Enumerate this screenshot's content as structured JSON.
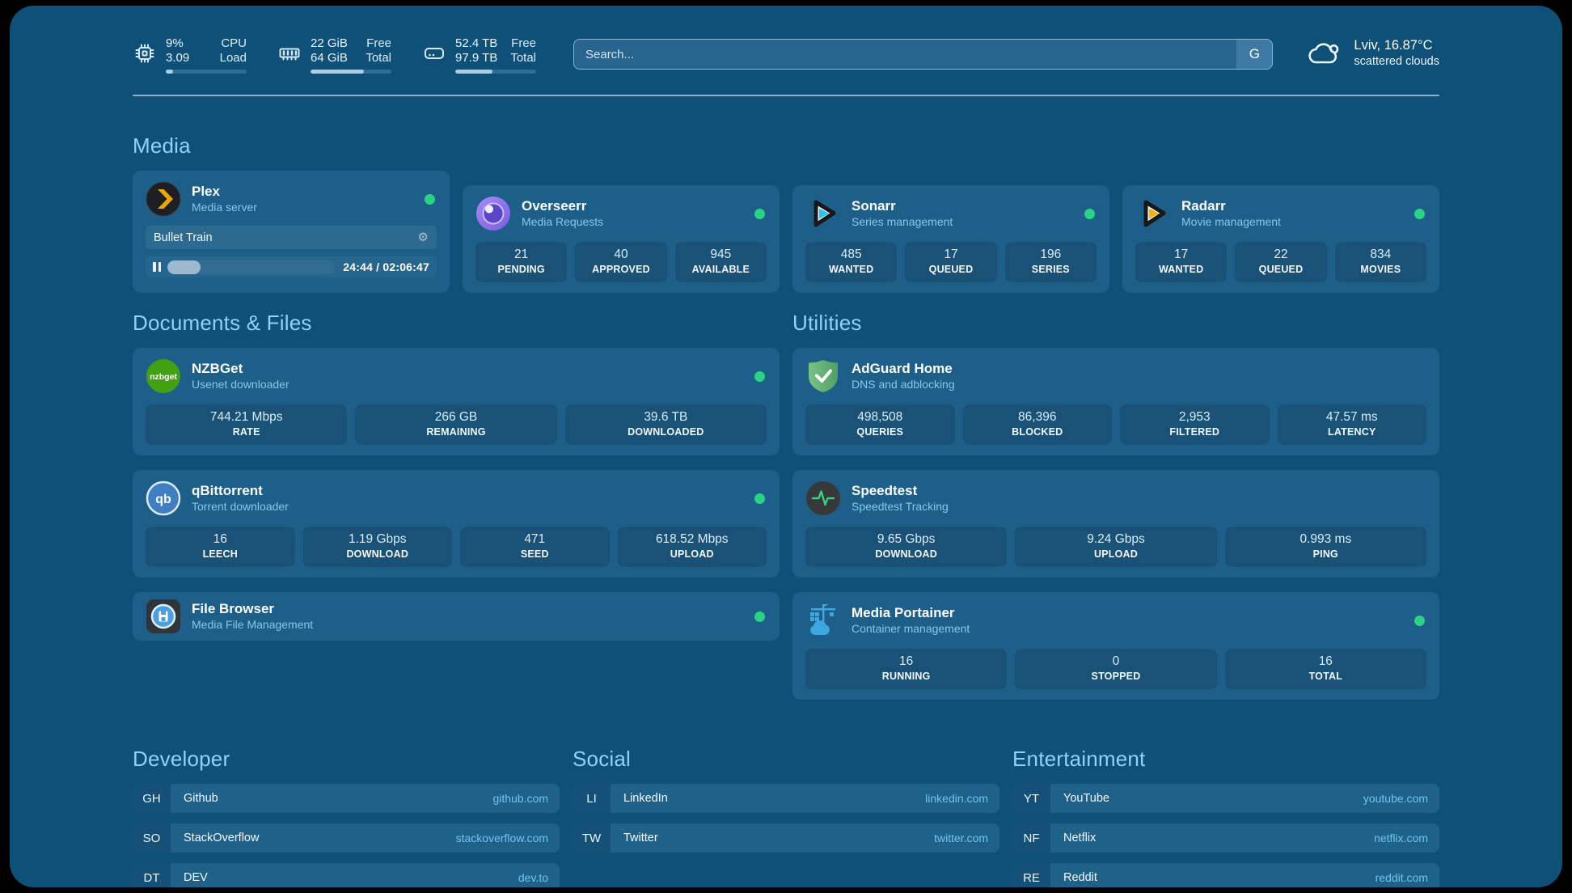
{
  "header": {
    "system_stats": [
      {
        "icon": "cpu-icon",
        "rows": [
          {
            "value": "9%",
            "label": "CPU"
          },
          {
            "value": "3.09",
            "label": "Load"
          }
        ],
        "progress_percent": 9
      },
      {
        "icon": "memory-icon",
        "rows": [
          {
            "value": "22 GiB",
            "label": "Free"
          },
          {
            "value": "64 GiB",
            "label": "Total"
          }
        ],
        "progress_percent": 66
      },
      {
        "icon": "disk-icon",
        "rows": [
          {
            "value": "52.4 TB",
            "label": "Free"
          },
          {
            "value": "97.9 TB",
            "label": "Total"
          }
        ],
        "progress_percent": 46
      }
    ],
    "search": {
      "placeholder": "Search...",
      "button_label": "G"
    },
    "weather": {
      "icon": "cloud-icon",
      "title": "Lviv, 16.87°C",
      "subtitle": "scattered clouds"
    }
  },
  "sections": {
    "media": {
      "title": "Media",
      "cards": [
        {
          "name": "Plex",
          "subtitle": "Media server",
          "online": true,
          "now_playing": {
            "title": "Bullet Train",
            "time_display": "24:44 / 02:06:47",
            "progress_percent": 20
          }
        },
        {
          "name": "Overseerr",
          "subtitle": "Media Requests",
          "online": true,
          "stats": [
            {
              "value": "21",
              "label": "PENDING"
            },
            {
              "value": "40",
              "label": "APPROVED"
            },
            {
              "value": "945",
              "label": "AVAILABLE"
            }
          ]
        },
        {
          "name": "Sonarr",
          "subtitle": "Series management",
          "online": true,
          "stats": [
            {
              "value": "485",
              "label": "WANTED"
            },
            {
              "value": "17",
              "label": "QUEUED"
            },
            {
              "value": "196",
              "label": "SERIES"
            }
          ]
        },
        {
          "name": "Radarr",
          "subtitle": "Movie management",
          "online": true,
          "stats": [
            {
              "value": "17",
              "label": "WANTED"
            },
            {
              "value": "22",
              "label": "QUEUED"
            },
            {
              "value": "834",
              "label": "MOVIES"
            }
          ]
        }
      ]
    },
    "documents": {
      "title": "Documents & Files",
      "cards": [
        {
          "name": "NZBGet",
          "subtitle": "Usenet downloader",
          "online": true,
          "stats": [
            {
              "value": "744.21 Mbps",
              "label": "RATE"
            },
            {
              "value": "266 GB",
              "label": "REMAINING"
            },
            {
              "value": "39.6 TB",
              "label": "DOWNLOADED"
            }
          ]
        },
        {
          "name": "qBittorrent",
          "subtitle": "Torrent downloader",
          "online": true,
          "stats": [
            {
              "value": "16",
              "label": "LEECH"
            },
            {
              "value": "1.19 Gbps",
              "label": "DOWNLOAD"
            },
            {
              "value": "471",
              "label": "SEED"
            },
            {
              "value": "618.52 Mbps",
              "label": "UPLOAD"
            }
          ]
        },
        {
          "name": "File Browser",
          "subtitle": "Media File Management",
          "online": true,
          "stats": []
        }
      ]
    },
    "utilities": {
      "title": "Utilities",
      "cards": [
        {
          "name": "AdGuard Home",
          "subtitle": "DNS and adblocking",
          "online": false,
          "stats": [
            {
              "value": "498,508",
              "label": "QUERIES"
            },
            {
              "value": "86,396",
              "label": "BLOCKED"
            },
            {
              "value": "2,953",
              "label": "FILTERED"
            },
            {
              "value": "47.57 ms",
              "label": "LATENCY"
            }
          ]
        },
        {
          "name": "Speedtest",
          "subtitle": "Speedtest Tracking",
          "online": false,
          "stats": [
            {
              "value": "9.65 Gbps",
              "label": "DOWNLOAD"
            },
            {
              "value": "9.24 Gbps",
              "label": "UPLOAD"
            },
            {
              "value": "0.993 ms",
              "label": "PING"
            }
          ]
        },
        {
          "name": "Media Portainer",
          "subtitle": "Container management",
          "online": true,
          "stats": [
            {
              "value": "16",
              "label": "RUNNING"
            },
            {
              "value": "0",
              "label": "STOPPED"
            },
            {
              "value": "16",
              "label": "TOTAL"
            }
          ]
        }
      ]
    },
    "links": [
      {
        "title": "Developer",
        "items": [
          {
            "tag": "GH",
            "label": "Github",
            "url": "github.com"
          },
          {
            "tag": "SO",
            "label": "StackOverflow",
            "url": "stackoverflow.com"
          },
          {
            "tag": "DT",
            "label": "DEV",
            "url": "dev.to"
          }
        ]
      },
      {
        "title": "Social",
        "items": [
          {
            "tag": "LI",
            "label": "LinkedIn",
            "url": "linkedin.com"
          },
          {
            "tag": "TW",
            "label": "Twitter",
            "url": "twitter.com"
          }
        ]
      },
      {
        "title": "Entertainment",
        "items": [
          {
            "tag": "YT",
            "label": "YouTube",
            "url": "youtube.com"
          },
          {
            "tag": "NF",
            "label": "Netflix",
            "url": "netflix.com"
          },
          {
            "tag": "RE",
            "label": "Reddit",
            "url": "reddit.com"
          }
        ]
      }
    ]
  },
  "colors": {
    "window_bg": "#0e5078",
    "card_bg": "#1d5f88",
    "accent_heading": "#8fd2f6",
    "status_online": "#2bd284",
    "link_url": "#6ec4ef"
  }
}
